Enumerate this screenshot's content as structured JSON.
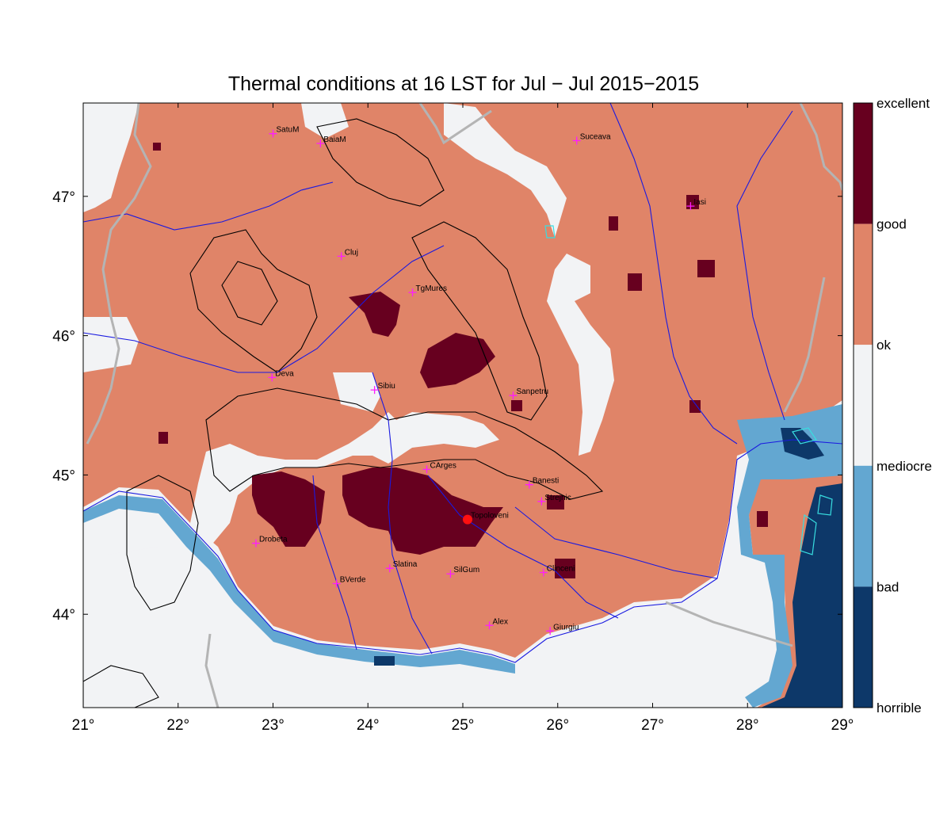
{
  "title": "Thermal conditions at 16 LST for Jul − Jul  2015−2015",
  "map": {
    "lon_range": [
      21,
      29
    ],
    "lat_range": [
      43.33,
      47.67
    ],
    "lon_ticks": [
      "21°",
      "22°",
      "23°",
      "24°",
      "25°",
      "26°",
      "27°",
      "28°",
      "29°"
    ],
    "lat_ticks": [
      "44°",
      "45°",
      "46°",
      "47°"
    ],
    "cities": [
      {
        "name": "SatuM",
        "lon": 23.0,
        "lat": 47.45
      },
      {
        "name": "BaiaM",
        "lon": 23.5,
        "lat": 47.38
      },
      {
        "name": "Suceava",
        "lon": 26.2,
        "lat": 47.4
      },
      {
        "name": "Iasi",
        "lon": 27.4,
        "lat": 46.93
      },
      {
        "name": "Cluj",
        "lon": 23.72,
        "lat": 46.57
      },
      {
        "name": "TgMures",
        "lon": 24.47,
        "lat": 46.31
      },
      {
        "name": "Deva",
        "lon": 22.99,
        "lat": 45.7
      },
      {
        "name": "Sibiu",
        "lon": 24.07,
        "lat": 45.61
      },
      {
        "name": "Sanpetru",
        "lon": 25.53,
        "lat": 45.57
      },
      {
        "name": "CArges",
        "lon": 24.62,
        "lat": 45.04
      },
      {
        "name": "Banesti",
        "lon": 25.7,
        "lat": 44.93
      },
      {
        "name": "Strejnic",
        "lon": 25.83,
        "lat": 44.81
      },
      {
        "name": "Topoloveni",
        "lon": 25.05,
        "lat": 44.68
      },
      {
        "name": "Drobeta",
        "lon": 22.82,
        "lat": 44.51
      },
      {
        "name": "Slatina",
        "lon": 24.23,
        "lat": 44.33
      },
      {
        "name": "SilGum",
        "lon": 24.87,
        "lat": 44.29
      },
      {
        "name": "Clinceni",
        "lon": 25.85,
        "lat": 44.3
      },
      {
        "name": "BVerde",
        "lon": 23.67,
        "lat": 44.22
      },
      {
        "name": "Alex",
        "lon": 25.28,
        "lat": 43.92
      },
      {
        "name": "Giurgiu",
        "lon": 25.92,
        "lat": 43.88
      }
    ],
    "highlight_station": "Topoloveni",
    "colors": {
      "excellent": "#67001f",
      "good": "#e08468",
      "ok": "#f2f3f5",
      "mediocre": "#63a7d1",
      "bad": "#0d3869",
      "river": "#1a1ae0",
      "border": "#b4b4b4",
      "contour": "#000000",
      "marker": "#ff1cff",
      "station": "#ff1010",
      "lake": "#38dde0"
    }
  },
  "legend": {
    "labels": [
      "excellent",
      "good",
      "ok",
      "mediocre",
      "bad",
      "horrible"
    ]
  }
}
